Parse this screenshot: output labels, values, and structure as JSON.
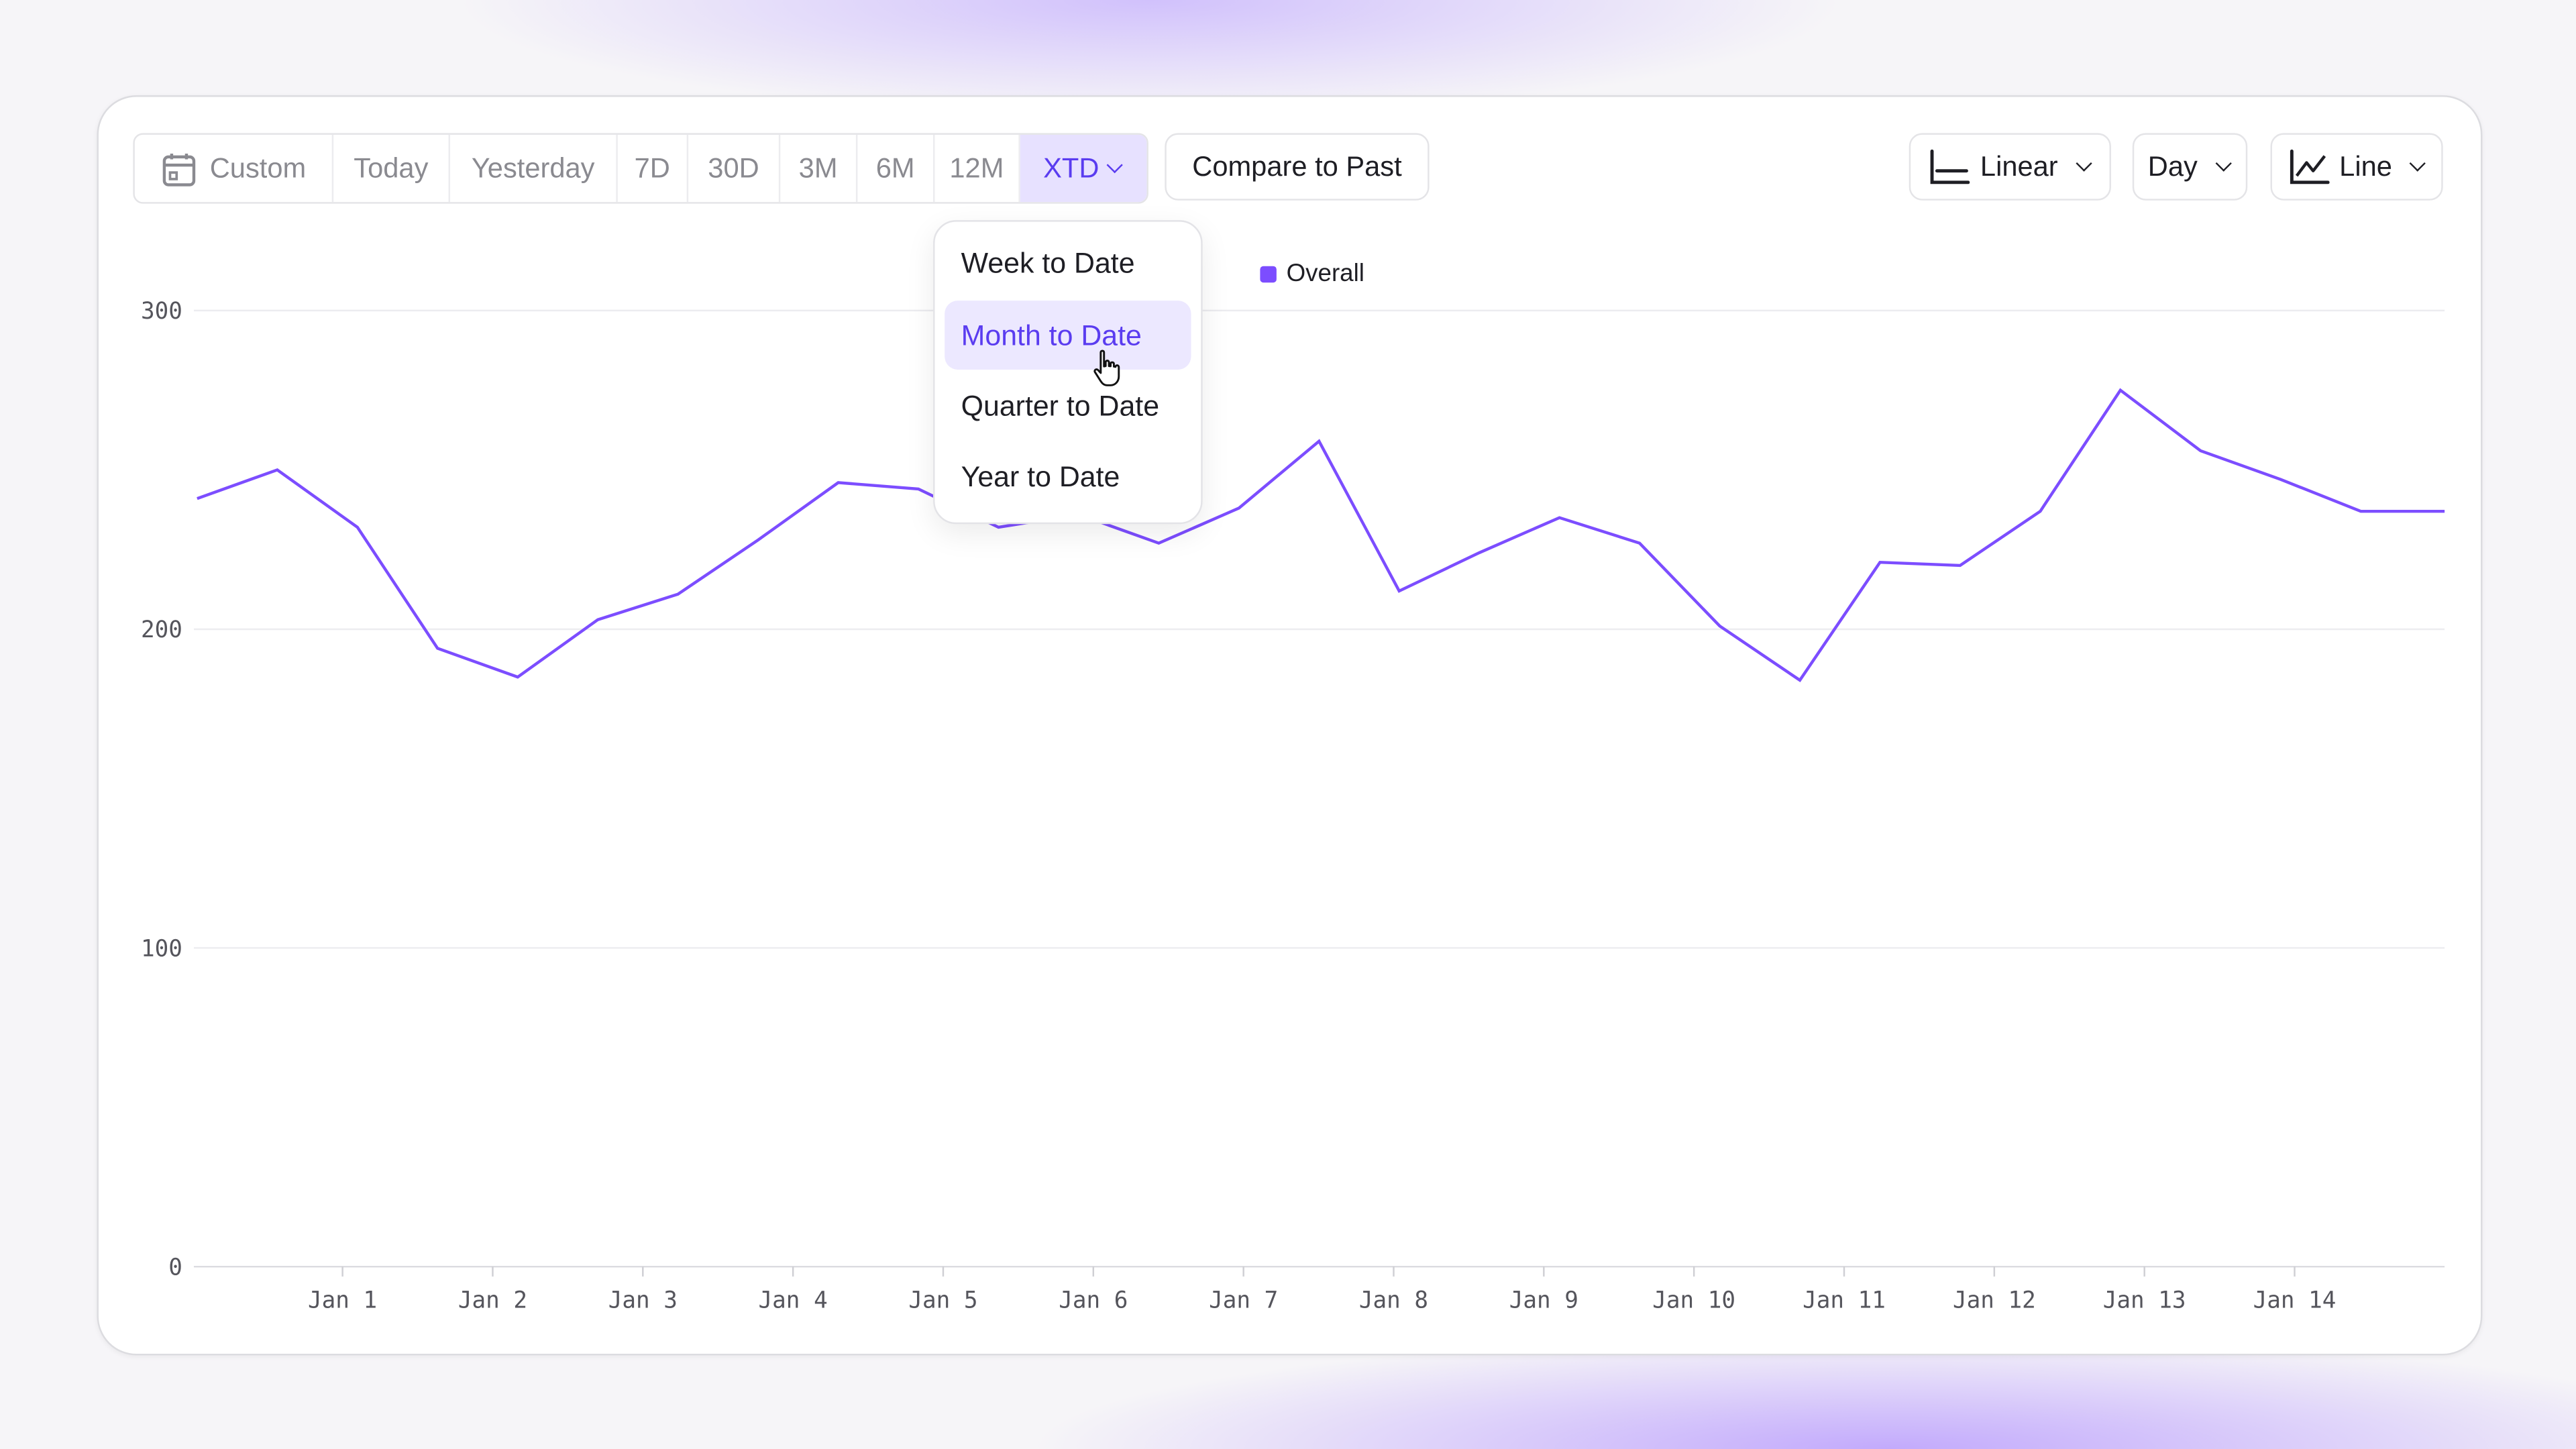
{
  "toolbar": {
    "ranges": [
      {
        "label": "Custom",
        "icon": "calendar-icon"
      },
      {
        "label": "Today"
      },
      {
        "label": "Yesterday"
      },
      {
        "label": "7D"
      },
      {
        "label": "30D"
      },
      {
        "label": "3M"
      },
      {
        "label": "6M"
      },
      {
        "label": "12M"
      },
      {
        "label": "XTD",
        "active": true
      }
    ],
    "compare_label": "Compare to Past",
    "scale_label": "Linear",
    "interval_label": "Day",
    "chart_type_label": "Line"
  },
  "xtd_menu": {
    "items": [
      "Week to Date",
      "Month to Date",
      "Quarter to Date",
      "Year to Date"
    ],
    "highlighted": "Month to Date"
  },
  "colors": {
    "accent": "#7c4dff",
    "active_text": "#5a3cf0",
    "grid": "#e8e8ec"
  },
  "chart_data": {
    "type": "line",
    "legend": [
      "Overall"
    ],
    "series": [
      {
        "name": "Overall",
        "color": "#7c4dff",
        "values": [
          241,
          250,
          232,
          194,
          185,
          203,
          211,
          228,
          246,
          244,
          232,
          236,
          227,
          238,
          259,
          212,
          224,
          235,
          227,
          201,
          184,
          221,
          220,
          237,
          275,
          256,
          247,
          237,
          237
        ]
      }
    ],
    "x_tick_labels": [
      "Jan 1",
      "Jan 2",
      "Jan 3",
      "Jan 4",
      "Jan 5",
      "Jan 6",
      "Jan 7",
      "Jan 8",
      "Jan 9",
      "Jan 10",
      "Jan 11",
      "Jan 12",
      "Jan 13",
      "Jan 14"
    ],
    "y_ticks": [
      0,
      100,
      200,
      300
    ],
    "ylim": [
      0,
      300
    ],
    "grid": true,
    "legend_position": "top-center"
  }
}
